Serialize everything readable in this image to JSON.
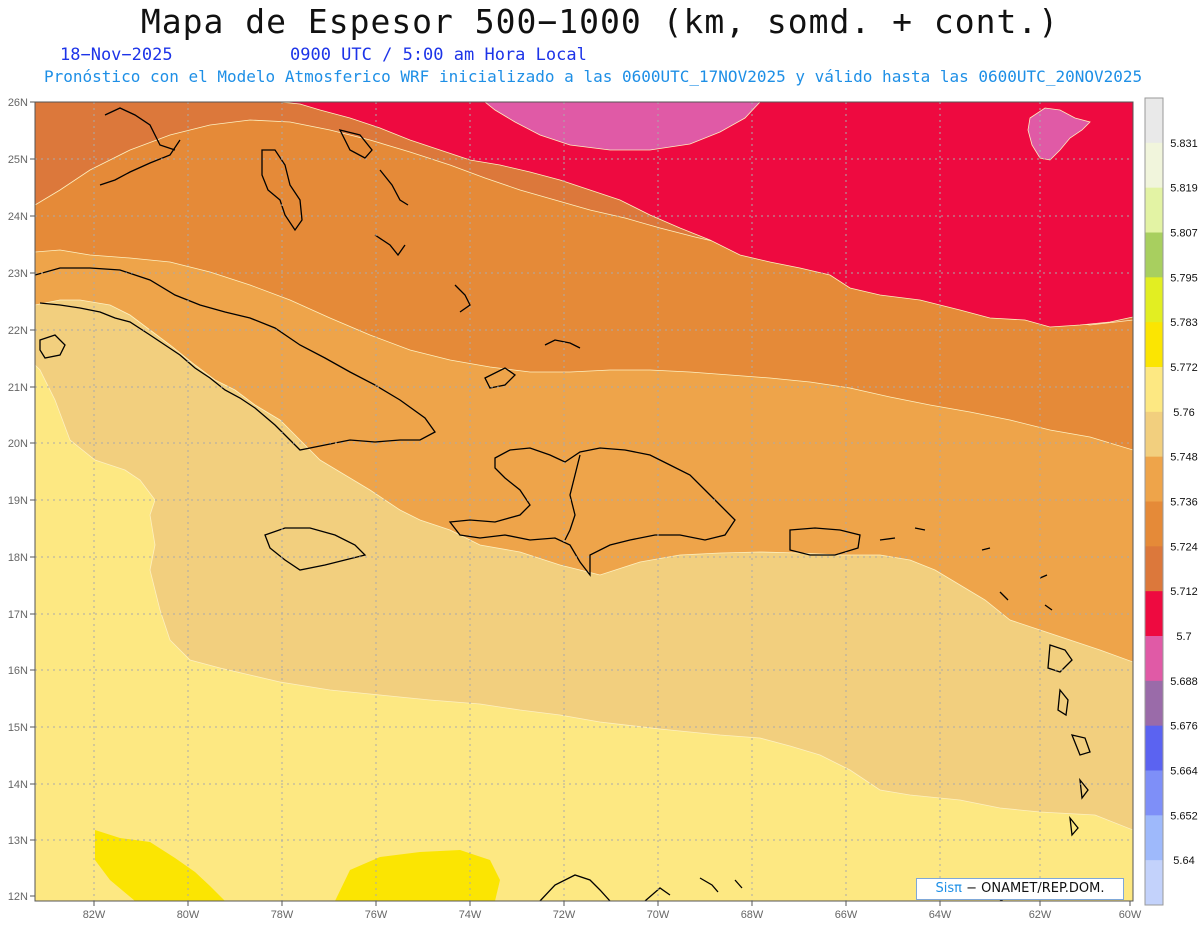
{
  "header": {
    "title": "Mapa de Espesor 500−1000 (km, somd. + cont.)",
    "date": "18−Nov−2025",
    "time": "0900 UTC / 5:00 am Hora Local",
    "description": "Pronóstico con el Modelo Atmosferico WRF inicializado a las 0600UTC_17NOV2025 y válido hasta las  0600UTC_20NOV2025"
  },
  "axes": {
    "lat_labels": [
      "26N",
      "25N",
      "24N",
      "23N",
      "22N",
      "21N",
      "20N",
      "19N",
      "18N",
      "17N",
      "16N",
      "15N",
      "14N",
      "13N",
      "12N"
    ],
    "lon_labels": [
      "82W",
      "80W",
      "78W",
      "76W",
      "74W",
      "72W",
      "70W",
      "68W",
      "66W",
      "64W",
      "62W",
      "60W"
    ]
  },
  "colorbar": {
    "labels": [
      "5.831",
      "5.819",
      "5.807",
      "5.795",
      "5.783",
      "5.772",
      "5.76",
      "5.748",
      "5.736",
      "5.724",
      "5.712",
      "5.7",
      "5.688",
      "5.676",
      "5.664",
      "5.652",
      "5.64"
    ],
    "colors": [
      "#e9e9e9",
      "#f1f5dc",
      "#e3f3a4",
      "#a8cf5f",
      "#e2ee22",
      "#fbe502",
      "#fde882",
      "#f2cf7e",
      "#eea44a",
      "#e58a38",
      "#dc783b",
      "#ee0a40",
      "#e05aa6",
      "#9a6ba9",
      "#5b63f1",
      "#7e8ff8",
      "#9eb9fb",
      "#c3d2fb"
    ]
  },
  "legend": {
    "sis": "Sisπ",
    "org": "− ONAMET/REP.DOM."
  },
  "colors": {
    "ocean_yellow": "#fde882",
    "light_tan": "#f2cf7e",
    "light_orange": "#eea44a",
    "orange": "#e58a38",
    "dark_orange": "#dc783b",
    "red": "#ee0a40",
    "pink": "#e05aa6",
    "bright_yellow": "#fbe502"
  }
}
